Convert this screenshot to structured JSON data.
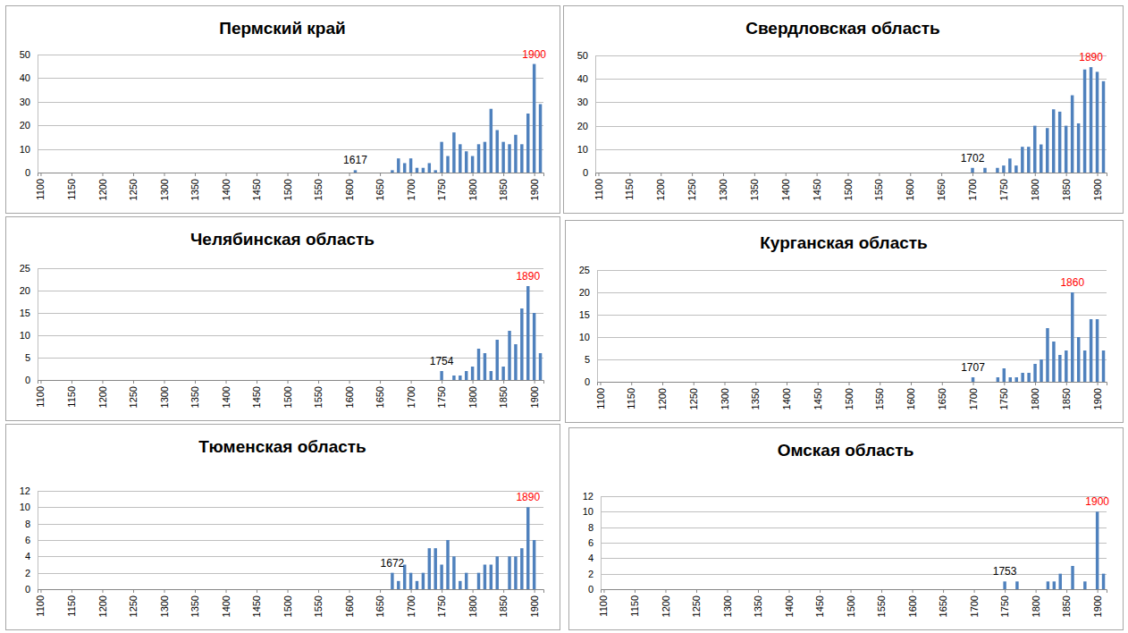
{
  "chart_data": [
    {
      "type": "bar",
      "title": "Пермский край",
      "color": "#4f81bd",
      "grid": true,
      "x": [
        1610,
        1670,
        1680,
        1690,
        1700,
        1710,
        1720,
        1730,
        1740,
        1750,
        1760,
        1770,
        1780,
        1790,
        1800,
        1810,
        1820,
        1830,
        1840,
        1850,
        1860,
        1870,
        1880,
        1890,
        1900,
        1910
      ],
      "values": [
        1,
        1,
        6,
        4,
        6,
        2,
        2,
        4,
        1,
        13,
        7,
        17,
        12,
        9,
        7,
        12,
        13,
        27,
        18,
        13,
        12,
        16,
        12,
        25,
        46,
        29
      ],
      "xlim": [
        1095,
        1915
      ],
      "xticks": [
        1100,
        1150,
        1200,
        1250,
        1300,
        1350,
        1400,
        1450,
        1500,
        1550,
        1600,
        1650,
        1700,
        1750,
        1800,
        1850,
        1900
      ],
      "ylim": [
        0,
        50
      ],
      "yticks": [
        0,
        10,
        20,
        30,
        40,
        50
      ],
      "annotations": [
        {
          "text": "1617",
          "x": 1610,
          "y": 1,
          "color": "#000000"
        },
        {
          "text": "1900",
          "x": 1900,
          "y": 46,
          "color": "#ff0000"
        }
      ]
    },
    {
      "type": "bar",
      "title": "Свердловская область",
      "color": "#4f81bd",
      "grid": true,
      "x": [
        1700,
        1720,
        1740,
        1750,
        1760,
        1770,
        1780,
        1790,
        1800,
        1810,
        1820,
        1830,
        1840,
        1850,
        1860,
        1870,
        1880,
        1890,
        1900,
        1910
      ],
      "values": [
        2,
        2,
        2,
        3,
        6,
        3,
        11,
        11,
        20,
        12,
        19,
        27,
        26,
        20,
        33,
        21,
        44,
        45,
        43,
        39
      ],
      "xlim": [
        1095,
        1915
      ],
      "xticks": [
        1100,
        1150,
        1200,
        1250,
        1300,
        1350,
        1400,
        1450,
        1500,
        1550,
        1600,
        1650,
        1700,
        1750,
        1800,
        1850,
        1900
      ],
      "ylim": [
        0,
        50
      ],
      "yticks": [
        0,
        10,
        20,
        30,
        40,
        50
      ],
      "annotations": [
        {
          "text": "1702",
          "x": 1700,
          "y": 2,
          "color": "#000000"
        },
        {
          "text": "1890",
          "x": 1890,
          "y": 45,
          "color": "#ff0000"
        }
      ]
    },
    {
      "type": "bar",
      "title": "Челябинская область",
      "color": "#4f81bd",
      "grid": true,
      "x": [
        1750,
        1770,
        1780,
        1790,
        1800,
        1810,
        1820,
        1830,
        1840,
        1850,
        1860,
        1870,
        1880,
        1890,
        1900,
        1910
      ],
      "values": [
        2,
        1,
        1,
        2,
        3,
        7,
        6,
        2,
        9,
        3,
        11,
        8,
        16,
        21,
        15,
        6
      ],
      "xlim": [
        1095,
        1915
      ],
      "xticks": [
        1100,
        1150,
        1200,
        1250,
        1300,
        1350,
        1400,
        1450,
        1500,
        1550,
        1600,
        1650,
        1700,
        1750,
        1800,
        1850,
        1900
      ],
      "ylim": [
        0,
        25
      ],
      "yticks": [
        0,
        5,
        10,
        15,
        20,
        25
      ],
      "annotations": [
        {
          "text": "1754",
          "x": 1750,
          "y": 2,
          "color": "#000000"
        },
        {
          "text": "1890",
          "x": 1890,
          "y": 21,
          "color": "#ff0000"
        }
      ]
    },
    {
      "type": "bar",
      "title": "Курганская область",
      "color": "#4f81bd",
      "grid": true,
      "x": [
        1700,
        1740,
        1750,
        1760,
        1770,
        1780,
        1790,
        1800,
        1810,
        1820,
        1830,
        1840,
        1850,
        1860,
        1870,
        1880,
        1890,
        1900,
        1910
      ],
      "values": [
        1,
        1,
        3,
        1,
        1,
        2,
        2,
        4,
        5,
        12,
        9,
        6,
        7,
        20,
        10,
        7,
        14,
        14,
        7
      ],
      "xlim": [
        1095,
        1915
      ],
      "xticks": [
        1100,
        1150,
        1200,
        1250,
        1300,
        1350,
        1400,
        1450,
        1500,
        1550,
        1600,
        1650,
        1700,
        1750,
        1800,
        1850,
        1900
      ],
      "ylim": [
        0,
        25
      ],
      "yticks": [
        0,
        5,
        10,
        15,
        20,
        25
      ],
      "annotations": [
        {
          "text": "1707",
          "x": 1700,
          "y": 1,
          "color": "#000000"
        },
        {
          "text": "1860",
          "x": 1860,
          "y": 20,
          "color": "#ff0000"
        }
      ]
    },
    {
      "type": "bar",
      "title": "Тюменская область",
      "color": "#4f81bd",
      "grid": true,
      "x": [
        1670,
        1680,
        1690,
        1700,
        1710,
        1720,
        1730,
        1740,
        1750,
        1760,
        1770,
        1780,
        1790,
        1810,
        1820,
        1830,
        1840,
        1860,
        1870,
        1880,
        1890,
        1900
      ],
      "values": [
        2,
        1,
        3,
        2,
        1,
        2,
        5,
        5,
        3,
        6,
        4,
        1,
        2,
        2,
        3,
        3,
        4,
        4,
        4,
        5,
        10,
        6
      ],
      "xlim": [
        1095,
        1915
      ],
      "xticks": [
        1100,
        1150,
        1200,
        1250,
        1300,
        1350,
        1400,
        1450,
        1500,
        1550,
        1600,
        1650,
        1700,
        1750,
        1800,
        1850,
        1900
      ],
      "ylim": [
        0,
        12
      ],
      "yticks": [
        0,
        2,
        4,
        6,
        8,
        10,
        12
      ],
      "annotations": [
        {
          "text": "1672",
          "x": 1670,
          "y": 2,
          "color": "#000000"
        },
        {
          "text": "1890",
          "x": 1890,
          "y": 10,
          "color": "#ff0000"
        }
      ]
    },
    {
      "type": "bar",
      "title": "Омская область",
      "color": "#4f81bd",
      "grid": true,
      "x": [
        1750,
        1770,
        1820,
        1830,
        1840,
        1860,
        1880,
        1900,
        1910
      ],
      "values": [
        1,
        1,
        1,
        1,
        2,
        3,
        1,
        10,
        2
      ],
      "xlim": [
        1095,
        1915
      ],
      "xticks": [
        1100,
        1150,
        1200,
        1250,
        1300,
        1350,
        1400,
        1450,
        1500,
        1550,
        1600,
        1650,
        1700,
        1750,
        1800,
        1850,
        1900
      ],
      "ylim": [
        0,
        12
      ],
      "yticks": [
        0,
        2,
        4,
        6,
        8,
        10,
        12
      ],
      "annotations": [
        {
          "text": "1753",
          "x": 1750,
          "y": 1,
          "color": "#000000"
        },
        {
          "text": "1900",
          "x": 1900,
          "y": 10,
          "color": "#ff0000"
        }
      ]
    }
  ]
}
